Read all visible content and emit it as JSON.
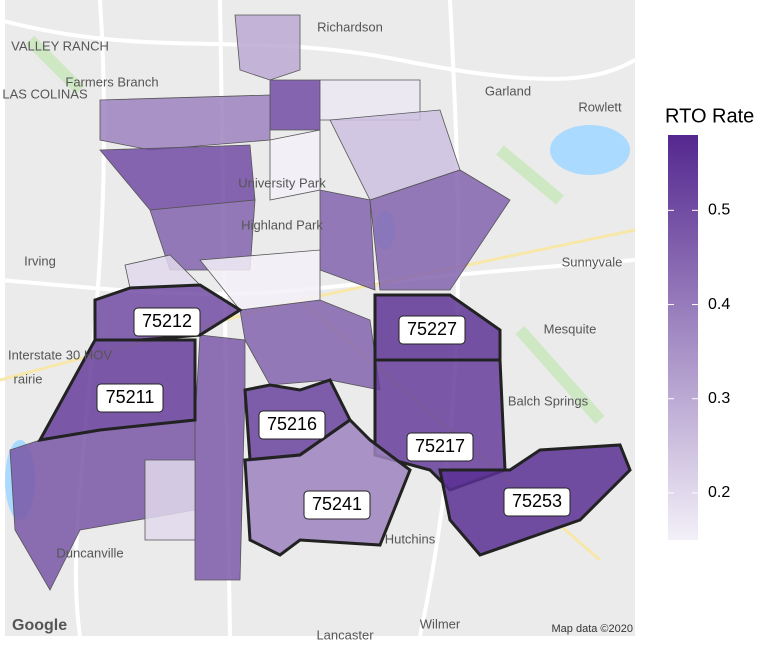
{
  "map": {
    "regions": [
      {
        "zip": "75212",
        "rate": 0.5
      },
      {
        "zip": "75211",
        "rate": 0.53
      },
      {
        "zip": "75216",
        "rate": 0.52
      },
      {
        "zip": "75227",
        "rate": 0.55
      },
      {
        "zip": "75217",
        "rate": 0.53
      },
      {
        "zip": "75241",
        "rate": 0.38
      },
      {
        "zip": "75253",
        "rate": 0.56
      },
      {
        "rate": 0.3
      },
      {
        "rate": 0.5
      },
      {
        "rate": 0.38
      },
      {
        "rate": 0.5
      },
      {
        "rate": 0.45
      },
      {
        "rate": 0.2
      },
      {
        "rate": 0.17
      },
      {
        "rate": 0.25
      },
      {
        "rate": 0.45
      },
      {
        "rate": 0.45
      },
      {
        "rate": 0.45
      },
      {
        "rate": 0.47
      },
      {
        "rate": 0.48
      },
      {
        "rate": 0.2
      },
      {
        "rate": 0.15
      },
      {
        "rate": 0.15
      }
    ],
    "places": [
      {
        "label": "Richardson"
      },
      {
        "label": "Farmers Branch"
      },
      {
        "label": "Garland"
      },
      {
        "label": "Rowlett"
      },
      {
        "label": "VALLEY RANCH"
      },
      {
        "label": "LAS COLINAS"
      },
      {
        "label": "University Park"
      },
      {
        "label": "Highland Park"
      },
      {
        "label": "Irving"
      },
      {
        "label": "Sunnyvale"
      },
      {
        "label": "Mesquite"
      },
      {
        "label": "Interstate 30 HOV"
      },
      {
        "label": "Balch Springs"
      },
      {
        "label": "Duncanville"
      },
      {
        "label": "Wilmer"
      },
      {
        "label": "Lancaster"
      },
      {
        "label": "Hutchins"
      },
      {
        "label": "rairie"
      }
    ],
    "attribution": {
      "logo": "Google",
      "credit": "Map data ©2020"
    },
    "legend": {
      "title": "RTO Rate",
      "lim": [
        0.15,
        0.58
      ],
      "ticks": [
        0.2,
        0.3,
        0.4,
        0.5
      ],
      "low_color": "#f3f0f8",
      "high_color": "#54278f"
    }
  }
}
